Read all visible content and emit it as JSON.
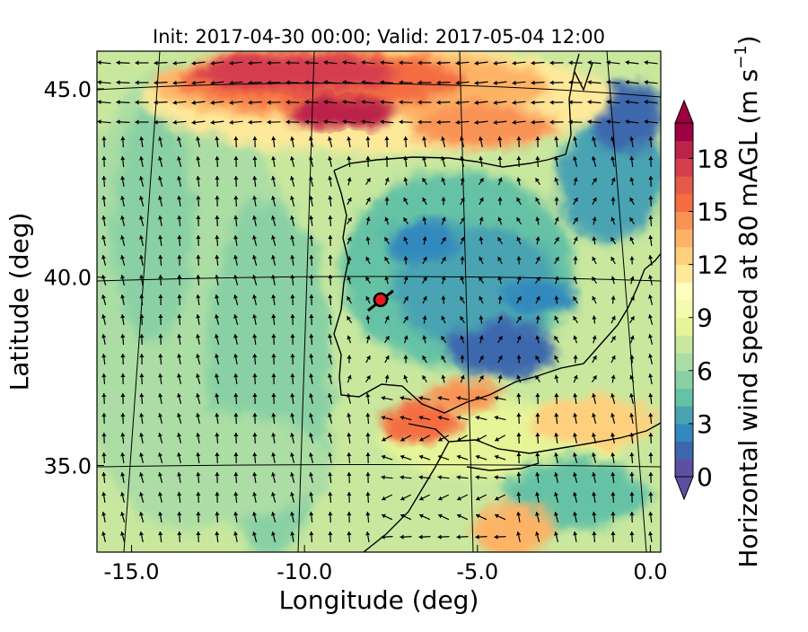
{
  "map": {
    "title": "Init: 2017-04-30 00:00; Valid: 2017-05-04 12:00",
    "xlabel": "Longitude (deg)",
    "ylabel": "Latitude (deg)",
    "lon_range": [
      -16.0,
      0.3
    ],
    "lat_range": [
      32.7,
      46.0
    ],
    "lon_ticks": [
      {
        "value": -15,
        "label": "-15.0"
      },
      {
        "value": -10,
        "label": "-10.0"
      },
      {
        "value": -5,
        "label": "-5.0"
      },
      {
        "value": 0,
        "label": "0.0"
      }
    ],
    "lat_ticks": [
      {
        "value": 35,
        "label": "35.0"
      },
      {
        "value": 40,
        "label": "40.0"
      },
      {
        "value": 45,
        "label": "45.0"
      }
    ],
    "marker": {
      "lon": -7.8,
      "lat": 39.4,
      "color": "#e8191c"
    },
    "field": "horizontal wind speed at 80 m AGL with wind vectors",
    "colorbar": {
      "label": "Horizontal wind speed at 80 mAGL (m s",
      "label_exp": "−1",
      "label_end": ")",
      "min": 0,
      "max": 20,
      "extend": "both",
      "ticks": [
        {
          "value": 0,
          "label": "0"
        },
        {
          "value": 3,
          "label": "3"
        },
        {
          "value": 6,
          "label": "6"
        },
        {
          "value": 9,
          "label": "9"
        },
        {
          "value": 12,
          "label": "12"
        },
        {
          "value": 15,
          "label": "15"
        },
        {
          "value": 18,
          "label": "18"
        }
      ],
      "colors": [
        "#5e4fa2",
        "#3d67ad",
        "#3389bd",
        "#4aa3b2",
        "#66c2a5",
        "#89d0a4",
        "#abdda4",
        "#c9e89e",
        "#e6f598",
        "#f4faae",
        "#fffebe",
        "#fee99a",
        "#fed07e",
        "#fdb366",
        "#f99355",
        "#f46d43",
        "#e45a48",
        "#d53e4f",
        "#bb2449",
        "#9e0142"
      ]
    }
  }
}
